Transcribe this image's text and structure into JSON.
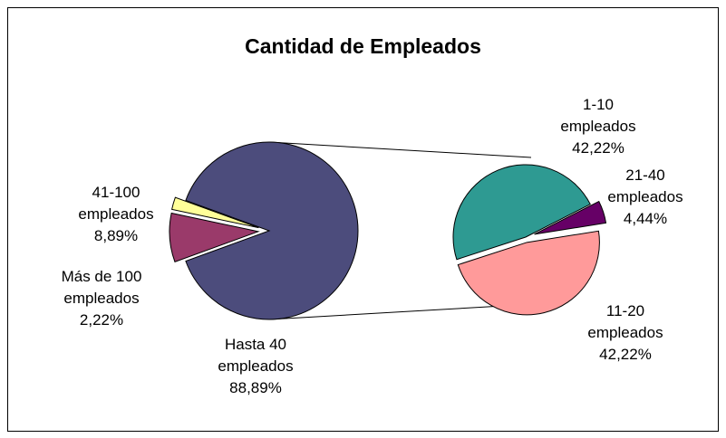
{
  "chart_data": {
    "type": "pie",
    "title": "Cantidad de Empleados",
    "categories": [
      "Hasta 40 empleados",
      "41-100 empleados",
      "Más de 100 empleados"
    ],
    "values": [
      88.89,
      8.89,
      2.22
    ],
    "value_labels": [
      "88,89%",
      "8,89%",
      "2,22%"
    ],
    "colors": [
      "#4c4c7c",
      "#9a3a6a",
      "#ffff99"
    ],
    "secondary": {
      "categories": [
        "1-10 empleados",
        "21-40 empleados",
        "11-20 empleados"
      ],
      "values": [
        42.22,
        4.44,
        42.22
      ],
      "value_labels": [
        "42,22%",
        "4,44%",
        "42,22%"
      ],
      "colors": [
        "#2e9a92",
        "#660066",
        "#ff9a9a"
      ]
    }
  }
}
